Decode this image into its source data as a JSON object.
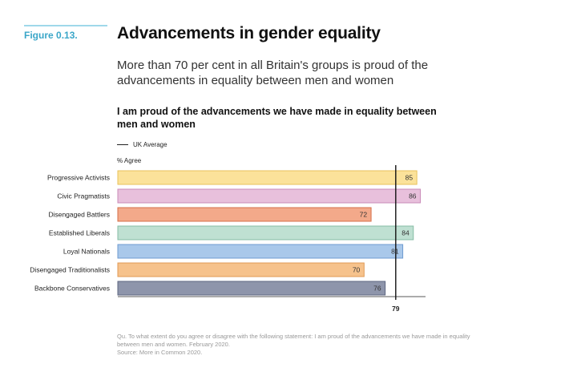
{
  "figure": {
    "label_prefix": "Figure",
    "label_number": "0.13."
  },
  "title": "Advancements in gender equality",
  "subtitle": "More than 70 per cent in all Britain's groups is proud of the advancements in equality between men and women",
  "chart_data": {
    "type": "bar",
    "orientation": "horizontal",
    "title": "I am proud of the advancements we have made in equality between men and women",
    "ylabel": "% Agree",
    "categories": [
      "Progressive Activists",
      "Civic Pragmatists",
      "Disengaged Battlers",
      "Established Liberals",
      "Loyal Nationals",
      "Disengaged Traditionalists",
      "Backbone Conservatives"
    ],
    "values": [
      85,
      86,
      72,
      84,
      81,
      70,
      76
    ],
    "colors": [
      "#fbe29a",
      "#e8c0dc",
      "#f3a98a",
      "#bfe0d2",
      "#a9c8ea",
      "#f6c28c",
      "#8e95ab"
    ],
    "stroke_colors": [
      "#e9c25a",
      "#c98bb8",
      "#d66f48",
      "#86bca4",
      "#6f9bd0",
      "#e09a55",
      "#5e6680"
    ],
    "xlim": [
      0,
      100
    ],
    "reference_line": {
      "label": "UK Average",
      "value": 79
    },
    "legend": "top-left"
  },
  "footnote": {
    "question": "Qu. To what extent do you agree or disagree with the following statement: I am proud of the advancements we have made in equality between men and women. February 2020.",
    "source": "Source: More in Common 2020."
  }
}
